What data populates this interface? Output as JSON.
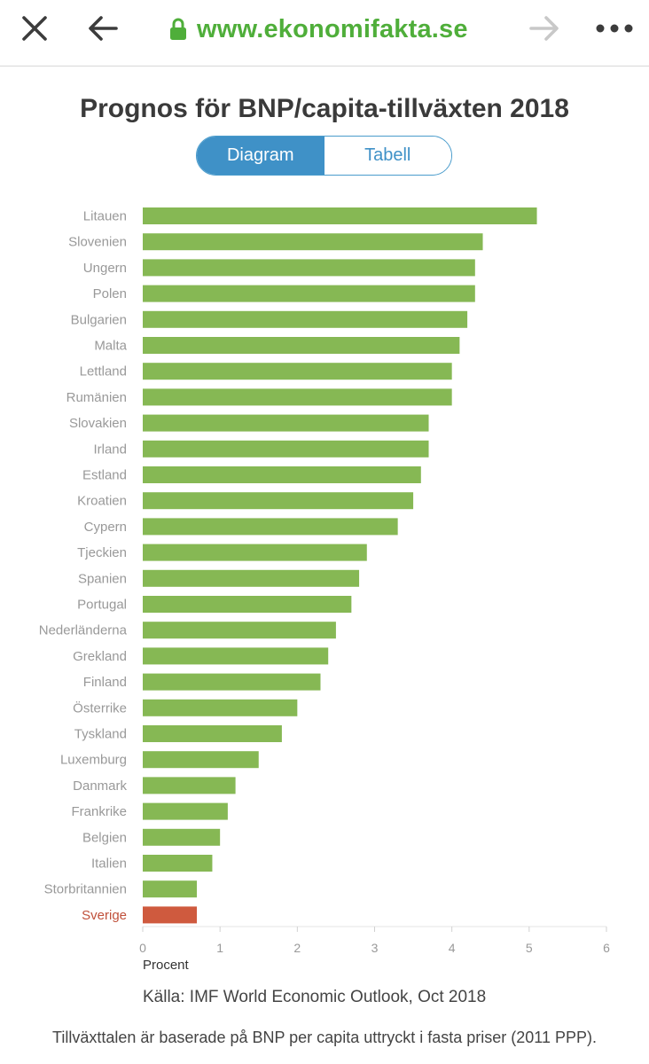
{
  "browser": {
    "url": "www.ekonomifakta.se",
    "icons": [
      "close-icon",
      "back-arrow-icon",
      "lock-icon",
      "forward-arrow-icon",
      "more-icon"
    ]
  },
  "page": {
    "title": "Prognos för BNP/capita-tillväxten 2018",
    "tabs": [
      {
        "label": "Diagram",
        "active": true
      },
      {
        "label": "Tabell",
        "active": false
      }
    ],
    "source": "Källa: IMF World Economic Outlook, Oct 2018",
    "footnote": "Tillväxttalen är baserade på BNP per capita uttryckt i fasta priser (2011 PPP)."
  },
  "colors": {
    "bar": "#86b854",
    "highlight_bar": "#cf5a3e",
    "highlight_label": "#c0503a",
    "label": "#999999",
    "url": "#4fae3a",
    "accent": "#3f91c7"
  },
  "chart_data": {
    "type": "bar",
    "orientation": "horizontal",
    "title": "Prognos för BNP/capita-tillväxten 2018",
    "xlabel": "Procent",
    "xlim": [
      0,
      6
    ],
    "xticks": [
      "0",
      "1",
      "2",
      "3",
      "4",
      "5",
      "6"
    ],
    "highlight": "Sverige",
    "categories": [
      "Litauen",
      "Slovenien",
      "Ungern",
      "Polen",
      "Bulgarien",
      "Malta",
      "Lettland",
      "Rumänien",
      "Slovakien",
      "Irland",
      "Estland",
      "Kroatien",
      "Cypern",
      "Tjeckien",
      "Spanien",
      "Portugal",
      "Nederländerna",
      "Grekland",
      "Finland",
      "Österrike",
      "Tyskland",
      "Luxemburg",
      "Danmark",
      "Frankrike",
      "Belgien",
      "Italien",
      "Storbritannien",
      "Sverige"
    ],
    "values": [
      5.1,
      4.4,
      4.3,
      4.3,
      4.2,
      4.1,
      4.0,
      4.0,
      3.7,
      3.7,
      3.6,
      3.5,
      3.3,
      2.9,
      2.8,
      2.7,
      2.5,
      2.4,
      2.3,
      2.0,
      1.8,
      1.5,
      1.2,
      1.1,
      1.0,
      0.9,
      0.7,
      0.7
    ]
  }
}
